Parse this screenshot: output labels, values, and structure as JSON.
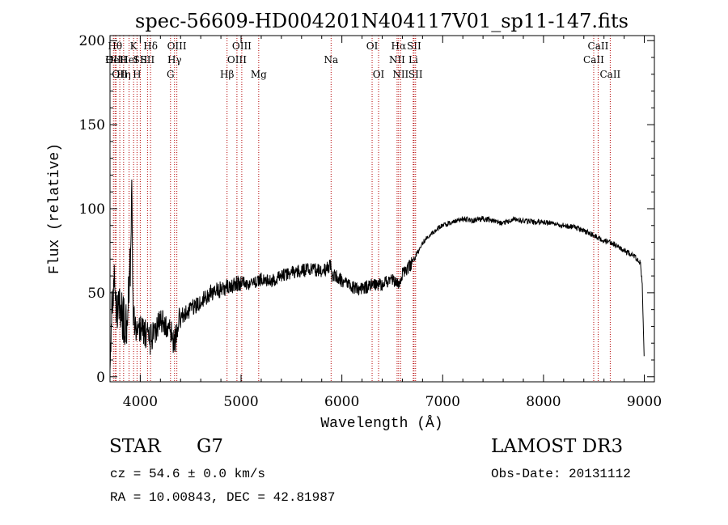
{
  "chart_data": {
    "type": "line",
    "title": "spec-56609-HD004201N404117V01_sp11-147.fits",
    "xlabel": "Wavelength (Å)",
    "ylabel": "Flux (relative)",
    "xlim": [
      3700,
      9100
    ],
    "ylim": [
      -3,
      203
    ],
    "xticks": [
      4000,
      5000,
      6000,
      7000,
      8000,
      9000
    ],
    "yticks": [
      0,
      50,
      100,
      150,
      200
    ],
    "spectrum_anchor_points": [
      [
        3700,
        15
      ],
      [
        3720,
        45
      ],
      [
        3740,
        55
      ],
      [
        3770,
        40
      ],
      [
        3800,
        42
      ],
      [
        3830,
        35
      ],
      [
        3860,
        30
      ],
      [
        3880,
        45
      ],
      [
        3895,
        60
      ],
      [
        3905,
        70
      ],
      [
        3915,
        125
      ],
      [
        3925,
        50
      ],
      [
        3940,
        30
      ],
      [
        3970,
        25
      ],
      [
        4000,
        30
      ],
      [
        4050,
        26
      ],
      [
        4100,
        22
      ],
      [
        4150,
        28
      ],
      [
        4200,
        32
      ],
      [
        4250,
        30
      ],
      [
        4300,
        25
      ],
      [
        4340,
        20
      ],
      [
        4400,
        36
      ],
      [
        4500,
        40
      ],
      [
        4600,
        45
      ],
      [
        4700,
        50
      ],
      [
        4800,
        52
      ],
      [
        4900,
        54
      ],
      [
        5000,
        56
      ],
      [
        5100,
        55
      ],
      [
        5200,
        58
      ],
      [
        5300,
        57
      ],
      [
        5400,
        60
      ],
      [
        5500,
        62
      ],
      [
        5600,
        63
      ],
      [
        5700,
        64
      ],
      [
        5800,
        63
      ],
      [
        5890,
        66
      ],
      [
        5900,
        60
      ],
      [
        5950,
        60
      ],
      [
        6000,
        57
      ],
      [
        6100,
        53
      ],
      [
        6200,
        52
      ],
      [
        6300,
        55
      ],
      [
        6400,
        55
      ],
      [
        6500,
        58
      ],
      [
        6563,
        55
      ],
      [
        6600,
        62
      ],
      [
        6650,
        64
      ],
      [
        6700,
        68
      ],
      [
        6750,
        74
      ],
      [
        6800,
        80
      ],
      [
        6900,
        86
      ],
      [
        7000,
        90
      ],
      [
        7100,
        92
      ],
      [
        7200,
        94
      ],
      [
        7300,
        93
      ],
      [
        7400,
        94
      ],
      [
        7500,
        93
      ],
      [
        7600,
        91
      ],
      [
        7700,
        94
      ],
      [
        7800,
        93
      ],
      [
        7900,
        92
      ],
      [
        8000,
        92
      ],
      [
        8100,
        91
      ],
      [
        8200,
        90
      ],
      [
        8300,
        89
      ],
      [
        8400,
        87
      ],
      [
        8500,
        84
      ],
      [
        8600,
        81
      ],
      [
        8700,
        79
      ],
      [
        8800,
        75
      ],
      [
        8900,
        72
      ],
      [
        8960,
        68
      ],
      [
        8980,
        55
      ],
      [
        8990,
        30
      ],
      [
        9000,
        8
      ]
    ],
    "line_markers": [
      {
        "wavelength": 3750,
        "row": 1,
        "label": "Hθ"
      },
      {
        "wavelength": 3734,
        "row": 2,
        "label": "OII"
      },
      {
        "wavelength": 3760,
        "row": 2,
        "label": "HeII"
      },
      {
        "wavelength": 3797,
        "row": 3,
        "label": "OII"
      },
      {
        "wavelength": 3835,
        "row": 3,
        "label": "Hη"
      },
      {
        "wavelength": 3889,
        "row": 2,
        "label": "HeI"
      },
      {
        "wavelength": 3934,
        "row": 1,
        "label": "K"
      },
      {
        "wavelength": 3968,
        "row": 3,
        "label": "H"
      },
      {
        "wavelength": 4000,
        "row": 2,
        "label": "SII"
      },
      {
        "wavelength": 4102,
        "row": 1,
        "label": "Hδ"
      },
      {
        "wavelength": 4072,
        "row": 2,
        "label": "SII"
      },
      {
        "wavelength": 4300,
        "row": 3,
        "label": "G"
      },
      {
        "wavelength": 4340,
        "row": 2,
        "label": "Hγ"
      },
      {
        "wavelength": 4363,
        "row": 1,
        "label": "OIII"
      },
      {
        "wavelength": 4861,
        "row": 3,
        "label": "Hβ"
      },
      {
        "wavelength": 4959,
        "row": 2,
        "label": "OIII"
      },
      {
        "wavelength": 5007,
        "row": 1,
        "label": "OIII"
      },
      {
        "wavelength": 5175,
        "row": 3,
        "label": "Mg"
      },
      {
        "wavelength": 5893,
        "row": 2,
        "label": "Na"
      },
      {
        "wavelength": 6300,
        "row": 1,
        "label": "OI"
      },
      {
        "wavelength": 6364,
        "row": 3,
        "label": "OI"
      },
      {
        "wavelength": 6548,
        "row": 2,
        "label": "NII"
      },
      {
        "wavelength": 6563,
        "row": 1,
        "label": "Hα"
      },
      {
        "wavelength": 6583,
        "row": 3,
        "label": "NII"
      },
      {
        "wavelength": 6708,
        "row": 2,
        "label": "Li"
      },
      {
        "wavelength": 6716,
        "row": 1,
        "label": "SII"
      },
      {
        "wavelength": 6731,
        "row": 3,
        "label": "SII"
      },
      {
        "wavelength": 8498,
        "row": 2,
        "label": "CaII"
      },
      {
        "wavelength": 8542,
        "row": 1,
        "label": "CaII"
      },
      {
        "wavelength": 8662,
        "row": 3,
        "label": "CaII"
      }
    ]
  },
  "info": {
    "object_type": "STAR",
    "subclass": "G7",
    "survey": "LAMOST DR3",
    "redshift": "cz = 54.6 ± 0.0 km/s",
    "obs_date": "Obs-Date: 20131112",
    "coords": "RA =  10.00843, DEC =  42.81987"
  },
  "colors": {
    "spectrum": "#000000",
    "marker": "#b40000",
    "axes": "#000000"
  }
}
